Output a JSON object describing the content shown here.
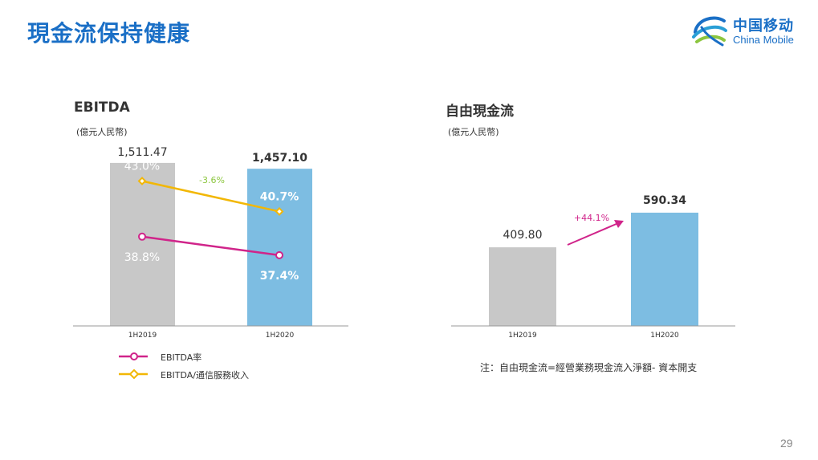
{
  "slide": {
    "title": "現金流保持健康",
    "page_number": "29"
  },
  "logo": {
    "name_cn": "中国移动",
    "name_en": "China Mobile"
  },
  "colors": {
    "title_blue": "#1a6fc6",
    "bar_2019": "#c8c8c8",
    "bar_2020": "#7dbde2",
    "ebitda_margin": "#d0248a",
    "ebitda_service": "#f2b705",
    "growth_green": "#8cc63f",
    "growth_pink": "#d0248a"
  },
  "chart_data": [
    {
      "type": "bar",
      "title": "EBITDA",
      "unit": "(億元人民幣)",
      "categories": [
        "1H2019",
        "1H2020"
      ],
      "values": [
        1511.47,
        1457.1
      ],
      "value_labels": [
        "1,511.47",
        "1,457.10"
      ],
      "ylim": [
        0,
        1600
      ],
      "growth_label": "-3.6%",
      "lines": [
        {
          "name": "EBITDA率",
          "values": [
            38.8,
            37.4
          ],
          "value_labels": [
            "38.8%",
            "37.4%"
          ],
          "color": "#d0248a"
        },
        {
          "name": "EBITDA/通信服務收入",
          "values": [
            43.0,
            40.7
          ],
          "value_labels": [
            "43.0%",
            "40.7%"
          ],
          "color": "#f2b705"
        }
      ],
      "line_ylim": [
        30,
        50
      ]
    },
    {
      "type": "bar",
      "title": "自由現金流",
      "unit": "(億元人民幣)",
      "categories": [
        "1H2019",
        "1H2020"
      ],
      "values": [
        409.8,
        590.34
      ],
      "value_labels": [
        "409.80",
        "590.34"
      ],
      "ylim": [
        0,
        1000
      ],
      "growth_label": "+44.1%",
      "note": "注：自由現金流=經營業務現金流入淨額- 資本開支"
    }
  ]
}
